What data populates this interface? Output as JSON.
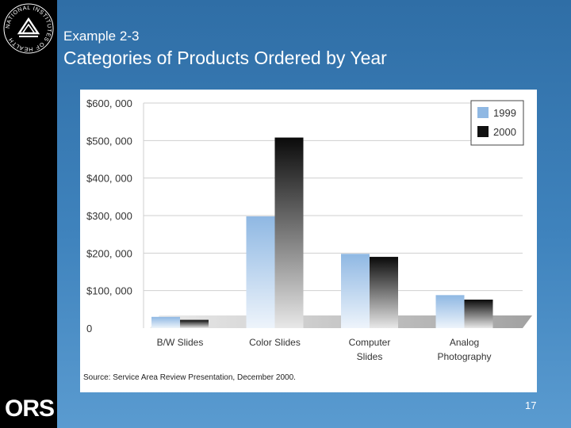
{
  "slide": {
    "eyebrow": "Example 2-3",
    "title": "Categories of Products Ordered by Year",
    "page_number": "17",
    "source": "Source: Service Area Review Presentation, December 2000.",
    "logo_text": "ORS",
    "seal_text": "NATIONAL INSTITUTES OF HEALTH"
  },
  "colors": {
    "background": "#3f83bd",
    "side_bar": "#000000",
    "series_1999": "#8fb8e3",
    "series_2000": "#111111"
  },
  "chart_data": {
    "type": "bar",
    "title": "",
    "xlabel": "",
    "ylabel": "",
    "ylim": [
      0,
      600000
    ],
    "yticks": [
      0,
      100000,
      200000,
      300000,
      400000,
      500000,
      600000
    ],
    "ytick_labels": [
      "0",
      "$100, 000",
      "$200, 000",
      "$300, 000",
      "$400, 000",
      "$500, 000",
      "$600, 000"
    ],
    "categories": [
      [
        "B/W Slides"
      ],
      [
        "Color Slides"
      ],
      [
        "Computer",
        "Slides"
      ],
      [
        "Analog",
        "Photography"
      ]
    ],
    "series": [
      {
        "name": "1999",
        "values": [
          30000,
          298000,
          198000,
          88000
        ]
      },
      {
        "name": "2000",
        "values": [
          22000,
          508000,
          190000,
          76000
        ]
      }
    ],
    "grid": true,
    "legend": "top-right"
  }
}
